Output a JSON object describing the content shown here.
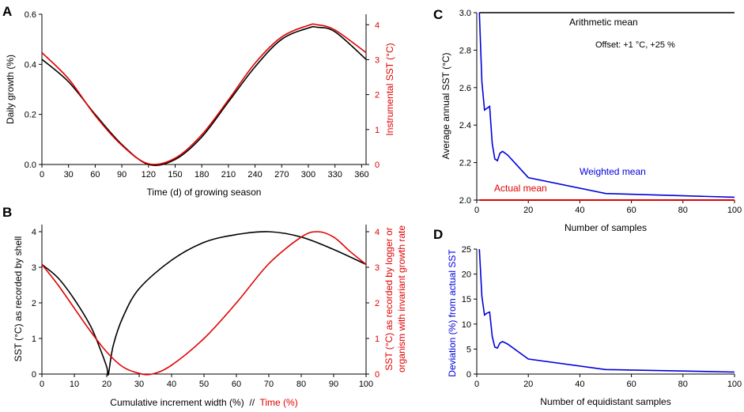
{
  "colors": {
    "black": "#000000",
    "red": "#e00000",
    "blue": "#0000dd"
  },
  "panels": {
    "A": {
      "letter": "A"
    },
    "B": {
      "letter": "B"
    },
    "C": {
      "letter": "C"
    },
    "D": {
      "letter": "D"
    }
  },
  "chart_data": [
    {
      "id": "A",
      "type": "line",
      "title": "",
      "xlabel": "Time (d) of growing season",
      "ylabel": "Daily growth (%)",
      "y2label": "Instrumental SST (°C)",
      "xlim": [
        0,
        365
      ],
      "xticks": [
        0,
        30,
        60,
        90,
        120,
        150,
        180,
        210,
        240,
        270,
        300,
        330,
        360
      ],
      "ylim": [
        0,
        0.6
      ],
      "yticks": [
        "0.0",
        "0.2",
        "0.4",
        "0.6"
      ],
      "y2lim": [
        0,
        4.3
      ],
      "y2ticks": [
        0,
        1,
        2,
        3,
        4
      ],
      "series": [
        {
          "name": "Daily growth",
          "axis": "left",
          "color": "#000000",
          "x": [
            0,
            30,
            60,
            90,
            120,
            150,
            180,
            210,
            240,
            270,
            300,
            310,
            330,
            365
          ],
          "values": [
            0.42,
            0.33,
            0.2,
            0.08,
            0.0,
            0.02,
            0.11,
            0.25,
            0.39,
            0.5,
            0.545,
            0.548,
            0.53,
            0.42
          ]
        },
        {
          "name": "Instrumental SST",
          "axis": "right",
          "color": "#e00000",
          "x": [
            0,
            30,
            60,
            90,
            120,
            150,
            180,
            210,
            240,
            270,
            300,
            310,
            330,
            365
          ],
          "values": [
            3.2,
            2.45,
            1.4,
            0.55,
            0.02,
            0.18,
            0.85,
            1.85,
            2.9,
            3.65,
            3.98,
            4.0,
            3.85,
            3.2
          ]
        }
      ]
    },
    {
      "id": "B",
      "type": "line",
      "title": "",
      "xlabel_parts": [
        "Cumulative increment width (%)",
        "  //  ",
        "Time (%)"
      ],
      "ylabel": "SST (°C) as recorded by shell",
      "y2label_lines": [
        "SST (°C) as recorded by logger or",
        "organism with invariant growth rate"
      ],
      "xlim": [
        0,
        100
      ],
      "xticks": [
        0,
        10,
        20,
        30,
        40,
        50,
        60,
        70,
        80,
        90,
        100
      ],
      "ylim": [
        0,
        4.2
      ],
      "yticks": [
        0,
        1,
        2,
        3,
        4
      ],
      "y2ticks": [
        0,
        1,
        2,
        3,
        4
      ],
      "series": [
        {
          "name": "SST recorded by shell",
          "axis": "left",
          "color": "#000000",
          "x": [
            0,
            5,
            10,
            15,
            18,
            20,
            20.5,
            22,
            25,
            30,
            40,
            50,
            60,
            70,
            80,
            90,
            100
          ],
          "values": [
            3.08,
            2.7,
            2.1,
            1.35,
            0.7,
            0.2,
            0.0,
            0.8,
            1.6,
            2.4,
            3.2,
            3.7,
            3.92,
            4.0,
            3.85,
            3.5,
            3.08
          ]
        },
        {
          "name": "SST recorded by logger",
          "axis": "right",
          "color": "#e00000",
          "x": [
            0,
            5,
            10,
            15,
            20,
            25,
            30,
            34,
            40,
            50,
            60,
            70,
            80,
            85,
            90,
            95,
            100
          ],
          "values": [
            3.08,
            2.5,
            1.85,
            1.2,
            0.62,
            0.2,
            0.02,
            0.0,
            0.25,
            1.0,
            2.0,
            3.1,
            3.85,
            4.0,
            3.85,
            3.45,
            3.08
          ]
        }
      ]
    },
    {
      "id": "C",
      "type": "line",
      "title": "",
      "xlabel": "Number of samples",
      "ylabel": "Average annual SST (°C)",
      "xlim": [
        0,
        100
      ],
      "xticks": [
        0,
        20,
        40,
        60,
        80,
        100
      ],
      "ylim": [
        2.0,
        3.0
      ],
      "yticks": [
        "2.0",
        "2.2",
        "2.4",
        "2.6",
        "2.8",
        "3.0"
      ],
      "annotations": [
        "Arithmetic mean",
        "Offset: +1 °C, +25 %",
        "Weighted mean",
        "Actual mean"
      ],
      "series": [
        {
          "name": "Arithmetic mean",
          "color": "#000000",
          "x": [
            1,
            100
          ],
          "values": [
            3.0,
            3.0
          ]
        },
        {
          "name": "Actual mean",
          "color": "#e00000",
          "x": [
            1,
            100
          ],
          "values": [
            2.0,
            2.0
          ]
        },
        {
          "name": "Weighted mean",
          "color": "#0000dd",
          "x": [
            1,
            2,
            3,
            4,
            5,
            6,
            7,
            8,
            9,
            10,
            12,
            20,
            50,
            100
          ],
          "values": [
            3.0,
            2.63,
            2.48,
            2.49,
            2.5,
            2.3,
            2.22,
            2.21,
            2.25,
            2.26,
            2.24,
            2.12,
            2.035,
            2.015
          ]
        }
      ]
    },
    {
      "id": "D",
      "type": "line",
      "title": "",
      "xlabel": "Number of equidistant samples",
      "ylabel": "Deviation (%) from actual SST",
      "xlim": [
        0,
        100
      ],
      "xticks": [
        0,
        20,
        40,
        60,
        80,
        100
      ],
      "ylim": [
        0,
        25
      ],
      "yticks": [
        0,
        5,
        10,
        15,
        20,
        25
      ],
      "series": [
        {
          "name": "Deviation",
          "color": "#0000dd",
          "x": [
            1,
            2,
            3,
            4,
            5,
            6,
            7,
            8,
            9,
            10,
            12,
            20,
            50,
            100
          ],
          "values": [
            25,
            15.5,
            11.8,
            12.2,
            12.4,
            7.5,
            5.4,
            5.2,
            6.2,
            6.5,
            6.0,
            3.0,
            0.9,
            0.4
          ]
        }
      ]
    }
  ]
}
